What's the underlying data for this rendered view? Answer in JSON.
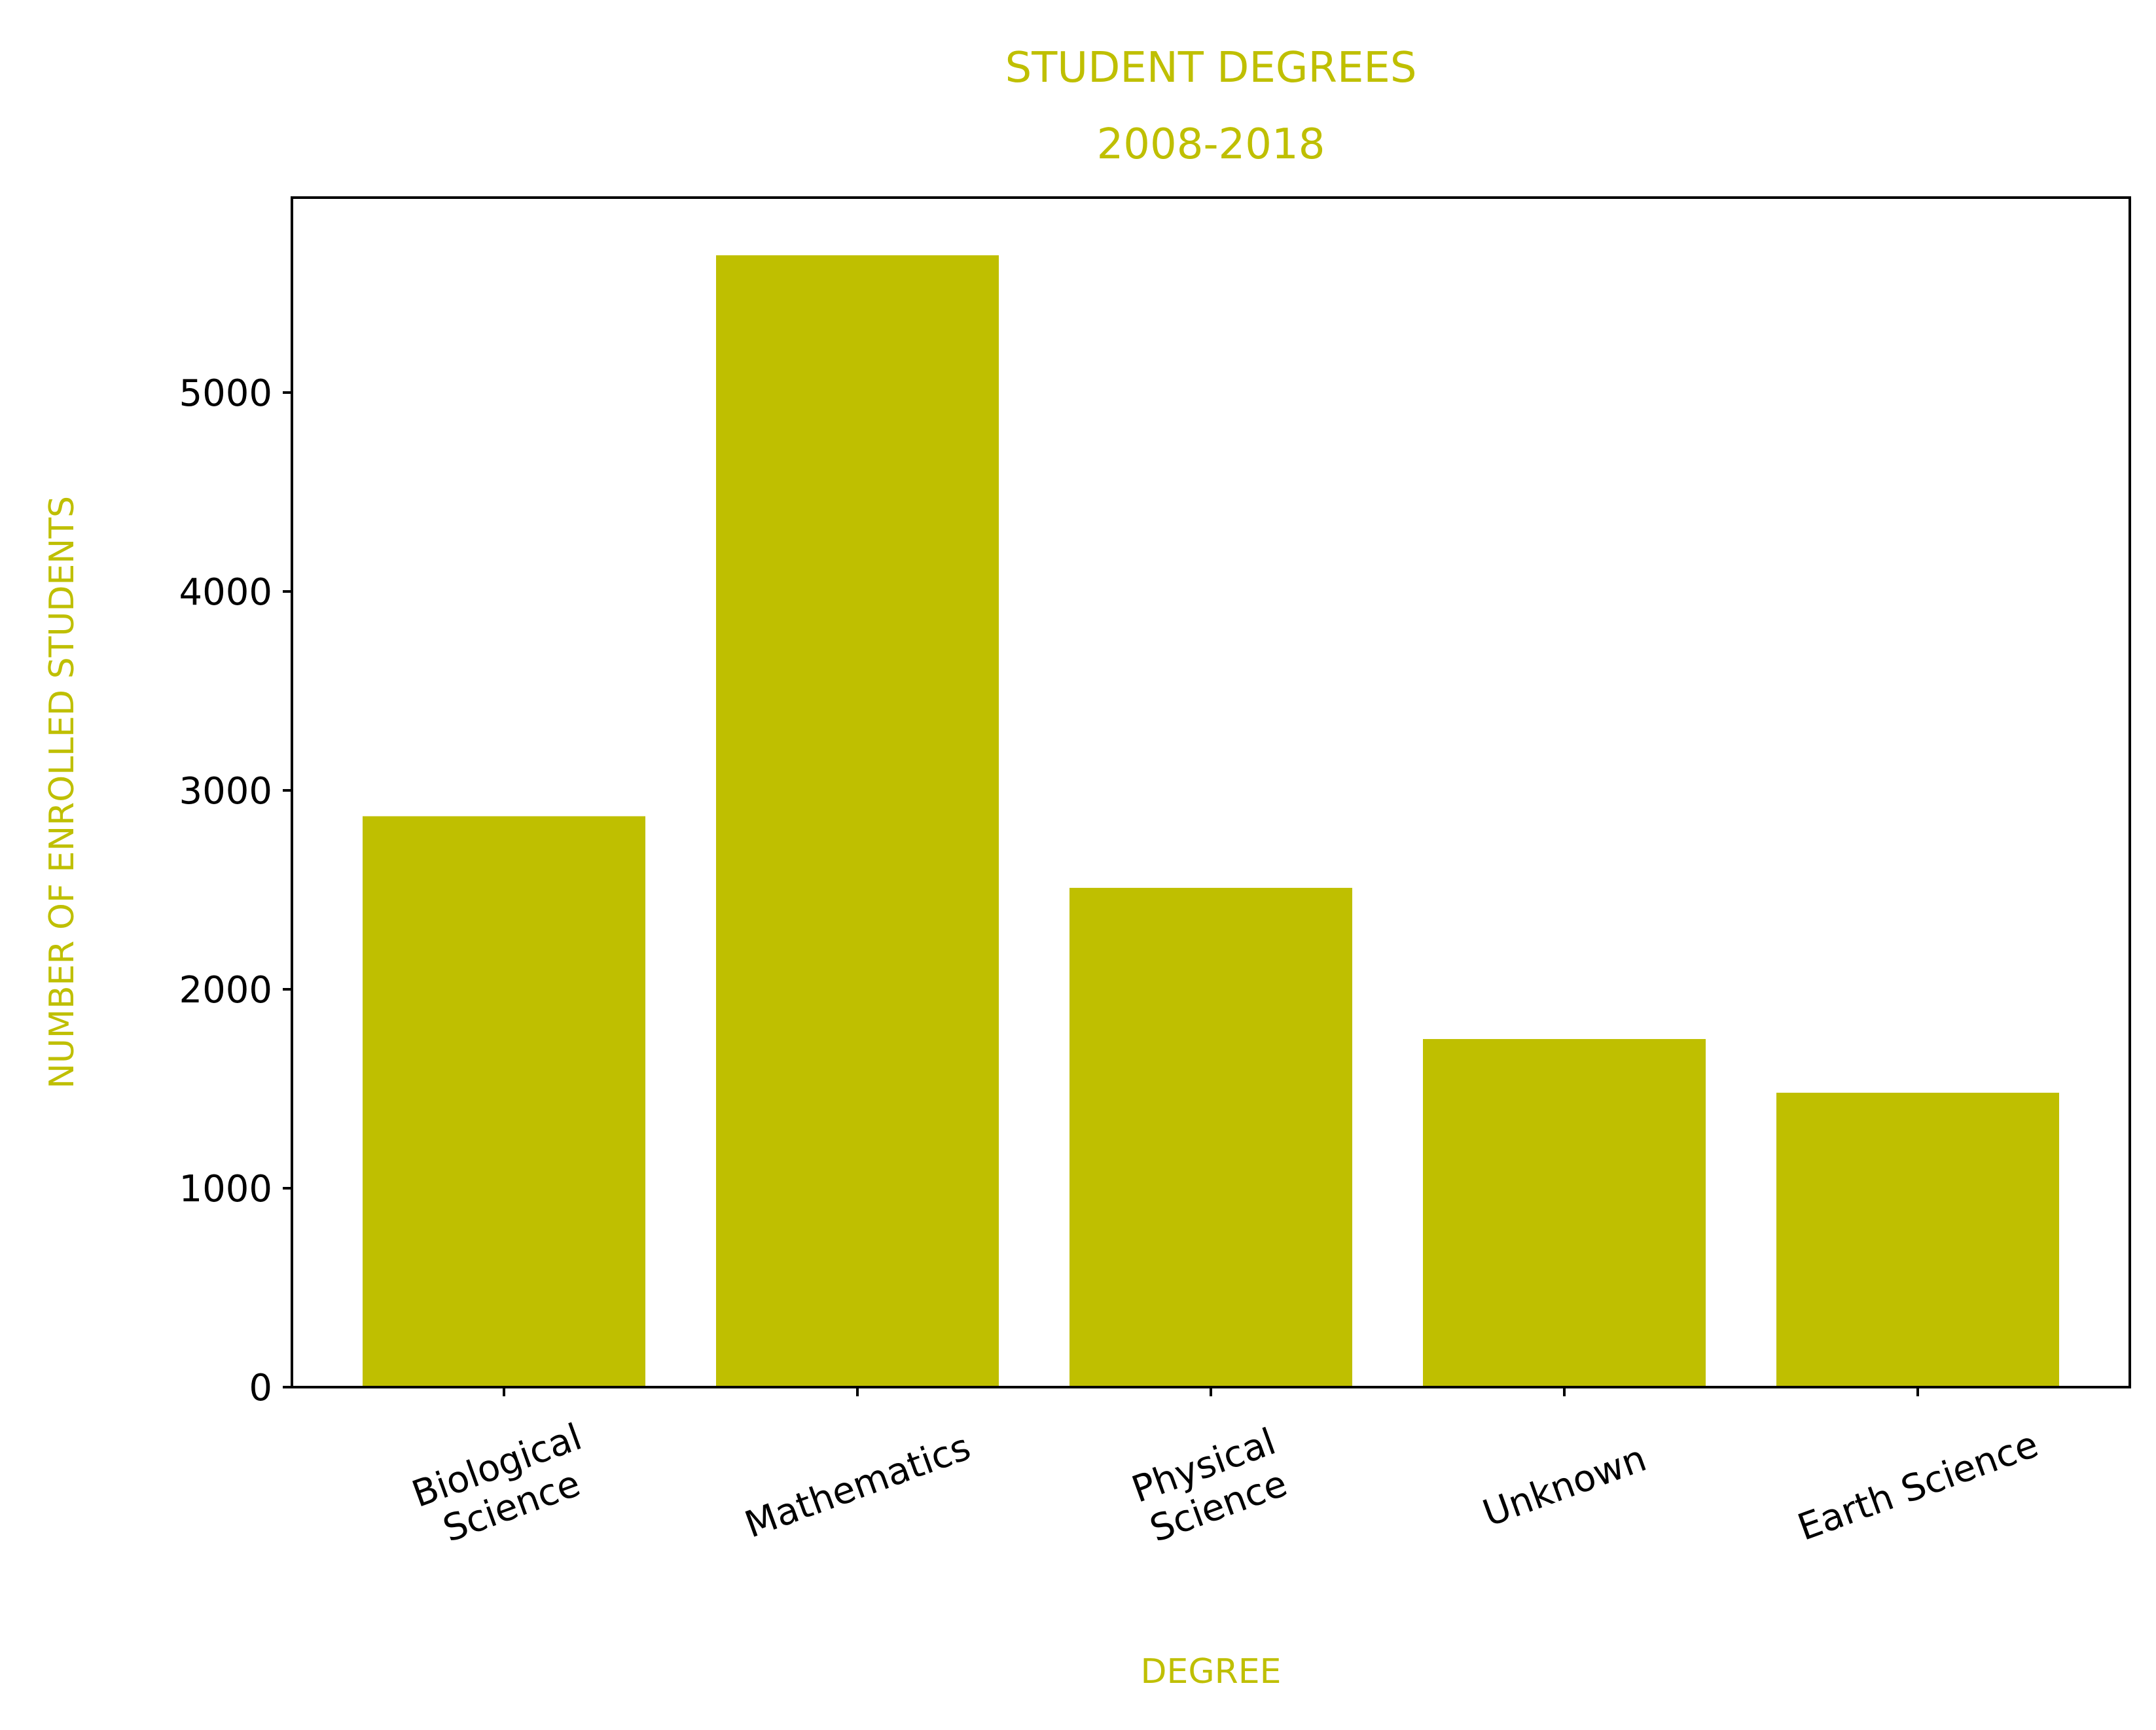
{
  "chart_data": {
    "type": "bar",
    "title": [
      "STUDENT DEGREES",
      "2008-2018"
    ],
    "xlabel": "DEGREE",
    "ylabel": "NUMBER OF ENROLLED STUDENTS",
    "categories": [
      [
        "Biological",
        "Science"
      ],
      [
        "Mathematics"
      ],
      [
        "Physical",
        "Science"
      ],
      [
        "Unknown"
      ],
      [
        "Earth Science"
      ]
    ],
    "values": [
      2870,
      5690,
      2510,
      1750,
      1480
    ],
    "ylim": [
      0,
      5980
    ],
    "yticks": [
      0,
      1000,
      2000,
      3000,
      4000,
      5000
    ],
    "grid": false,
    "legend": "none",
    "tick_label_rotation_deg": -20,
    "colors": {
      "bar": "#bfbf00",
      "label": "#bfbf00",
      "axis": "#000000"
    }
  }
}
